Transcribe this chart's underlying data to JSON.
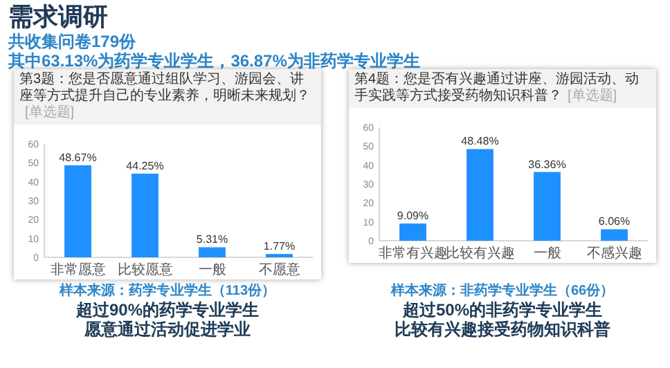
{
  "chart_data": [
    {
      "type": "bar",
      "title": "第3题：您是否愿意通过组队学习、游园会、讲座等方式提升自己的专业素养，明晰未来规划？",
      "subtitle": "[单选题]",
      "categories": [
        "非常愿意",
        "比较愿意",
        "一般",
        "不愿意"
      ],
      "values": [
        48.67,
        44.25,
        5.31,
        1.77
      ],
      "value_labels": [
        "48.67%",
        "44.25%",
        "5.31%",
        "1.77%"
      ],
      "color": "#1e90ff",
      "ylim": [
        0,
        60
      ],
      "yticks": [
        0,
        10,
        20,
        30,
        40,
        50,
        60
      ],
      "annotations": [
        "需求调研",
        "共收集问卷179份",
        "其中63.13%为药学专业学生，36.87%为非药学专业学生",
        "样本来源：药学专业学生（113份）",
        "超过90%的药学专业学生",
        "愿意通过活动促进学业"
      ]
    },
    {
      "type": "bar",
      "title": "第4题：您是否有兴趣通过讲座、游园活动、动手实践等方式接受药物知识科普？",
      "subtitle": "[单选题]",
      "categories": [
        "非常有兴趣",
        "比较有兴趣",
        "一般",
        "不感兴趣"
      ],
      "values": [
        9.09,
        48.48,
        36.36,
        6.06
      ],
      "value_labels": [
        "9.09%",
        "48.48%",
        "36.36%",
        "6.06%"
      ],
      "color": "#1e90ff",
      "ylim": [
        0,
        60
      ],
      "yticks": [
        0,
        10,
        20,
        30,
        40,
        50,
        60
      ],
      "annotations": [
        "样本来源：非药学专业学生（66份）",
        "超过50%的非药学专业学生",
        "比较有兴趣接受药物知识科普"
      ]
    }
  ]
}
